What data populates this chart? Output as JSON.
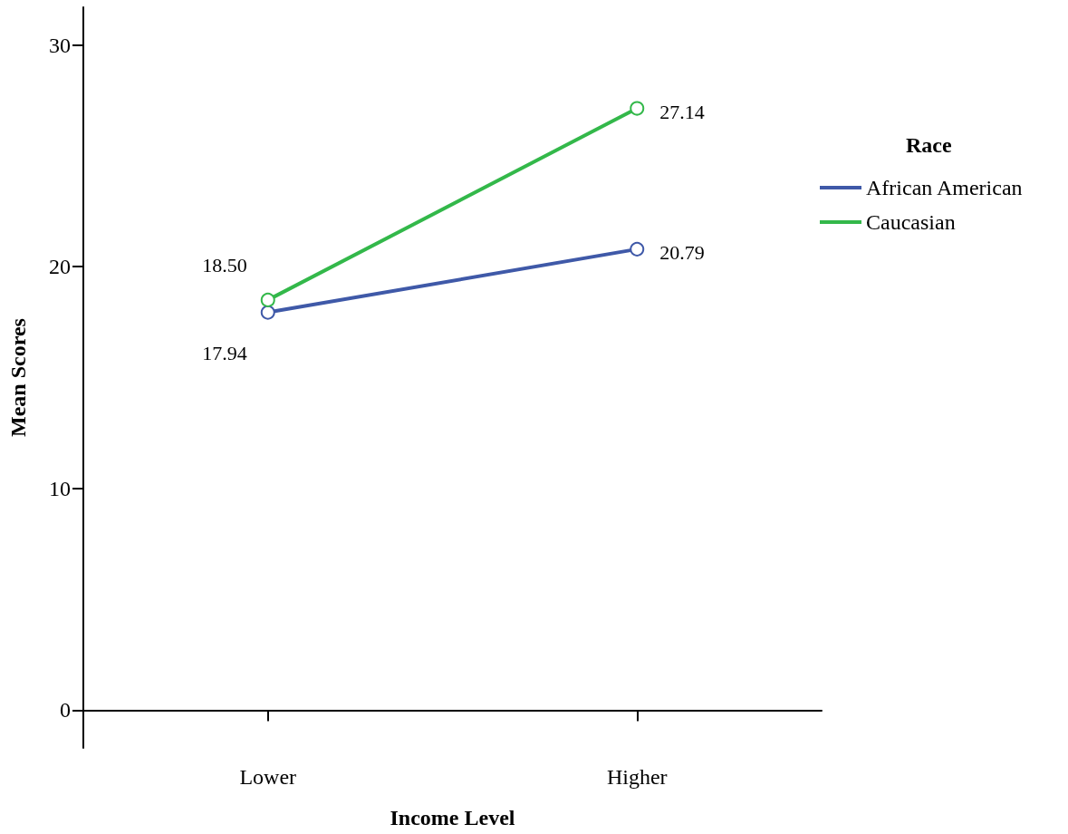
{
  "chart_data": {
    "type": "line",
    "xlabel": "Income Level",
    "ylabel": "Mean Scores",
    "legend_title": "Race",
    "categories": [
      "Lower",
      "Higher"
    ],
    "series": [
      {
        "name": "African American",
        "color": "#3f59a8",
        "values": [
          17.94,
          20.79
        ],
        "value_labels": [
          "17.94",
          "20.79"
        ]
      },
      {
        "name": "Caucasian",
        "color": "#33b84a",
        "values": [
          18.5,
          27.14
        ],
        "value_labels": [
          "18.50",
          "27.14"
        ]
      }
    ],
    "ylim": [
      -1.7,
      31.7
    ],
    "yticks": [
      0,
      10,
      20,
      30
    ],
    "grid": false,
    "legend": "right",
    "marker": "circle",
    "line_style": "solid"
  }
}
